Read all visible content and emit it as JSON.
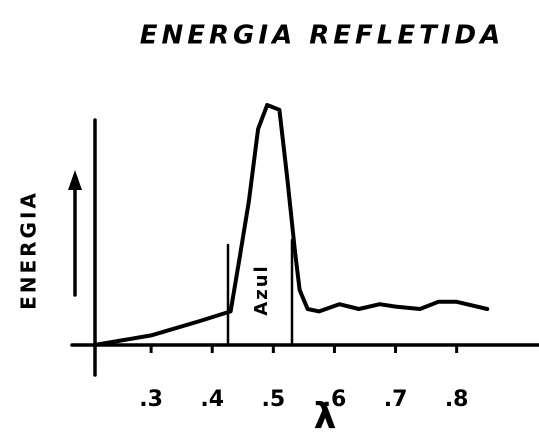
{
  "chart_data": {
    "type": "line",
    "title": "ENERGIA REFLETIDA",
    "ylabel": "ENERGIA",
    "xlabel": "λ",
    "annotation": "Azul",
    "color": "#000000",
    "x": [
      0.2075,
      0.3,
      0.38,
      0.43,
      0.444,
      0.46,
      0.475,
      0.49,
      0.51,
      0.523,
      0.535,
      0.543,
      0.556,
      0.575,
      0.608,
      0.64,
      0.674,
      0.7,
      0.74,
      0.77,
      0.8,
      0.85
    ],
    "values": [
      0,
      4,
      10,
      14,
      35,
      60,
      90,
      100,
      98,
      69,
      40,
      23,
      15,
      14,
      17,
      15,
      17,
      16,
      15,
      18,
      18,
      15
    ],
    "xlim": [
      0.2,
      0.92
    ],
    "ylim": [
      0,
      100
    ],
    "xticks": [
      {
        "value": 0.3,
        "label": ".3"
      },
      {
        "value": 0.4,
        "label": ".4"
      },
      {
        "value": 0.5,
        "label": ".5"
      },
      {
        "value": 0.6,
        "label": ".6"
      },
      {
        "value": 0.7,
        "label": ".7"
      },
      {
        "value": 0.8,
        "label": ".8"
      }
    ]
  }
}
